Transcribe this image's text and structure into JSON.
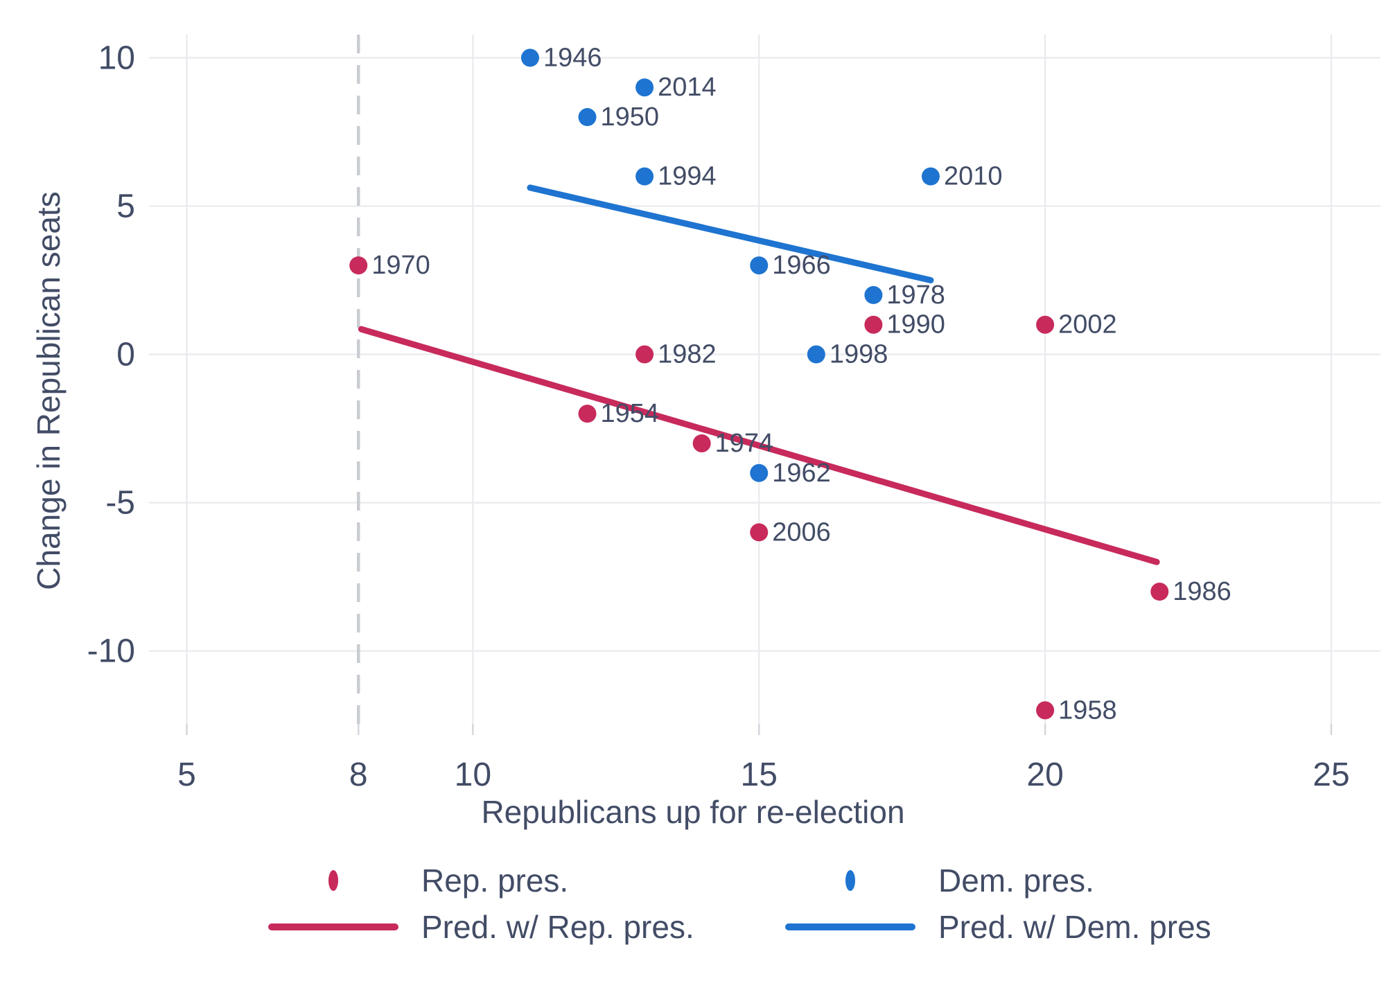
{
  "chart_data": {
    "type": "scatter",
    "title": "",
    "xlabel": "Republicans up for re-election",
    "ylabel": "Change in Republican seats",
    "x_ticks": [
      5,
      8,
      10,
      15,
      20,
      25
    ],
    "y_ticks": [
      10,
      5,
      0,
      -5,
      -10
    ],
    "x_range": [
      4.34,
      25.86
    ],
    "y_range": [
      -12.46,
      10.78
    ],
    "grid": true,
    "reference_line_x": 8,
    "series": [
      {
        "name": "Rep. pres.",
        "color": "#c72a5b",
        "points": [
          {
            "label": "1970",
            "x": 8,
            "y": 3
          },
          {
            "label": "1990",
            "x": 17,
            "y": 1
          },
          {
            "label": "2002",
            "x": 20,
            "y": 1
          },
          {
            "label": "1982",
            "x": 13,
            "y": 0
          },
          {
            "label": "1954",
            "x": 12,
            "y": -2
          },
          {
            "label": "1974",
            "x": 14,
            "y": -3
          },
          {
            "label": "2006",
            "x": 15,
            "y": -6
          },
          {
            "label": "1986",
            "x": 22,
            "y": -8
          },
          {
            "label": "1958",
            "x": 20,
            "y": -12
          }
        ]
      },
      {
        "name": "Dem. pres.",
        "color": "#1e74d0",
        "points": [
          {
            "label": "1946",
            "x": 11,
            "y": 10
          },
          {
            "label": "2014",
            "x": 13,
            "y": 9
          },
          {
            "label": "1950",
            "x": 12,
            "y": 8
          },
          {
            "label": "1994",
            "x": 13,
            "y": 6
          },
          {
            "label": "2010",
            "x": 18,
            "y": 6
          },
          {
            "label": "1966",
            "x": 15,
            "y": 3
          },
          {
            "label": "1978",
            "x": 17,
            "y": 2
          },
          {
            "label": "1998",
            "x": 16,
            "y": 0
          },
          {
            "label": "1962",
            "x": 15,
            "y": -4
          }
        ]
      }
    ],
    "trend_lines": [
      {
        "name": "Pred. w/ Rep. pres.",
        "color": "#c72a5b",
        "x1": 8.05,
        "y1": 0.85,
        "x2": 21.95,
        "y2": -7.0
      },
      {
        "name": "Pred. w/ Dem. pres",
        "color": "#1e74d0",
        "x1": 11.0,
        "y1": 5.62,
        "x2": 18.0,
        "y2": 2.5
      }
    ],
    "legend": [
      {
        "label": "Rep. pres.",
        "marker": "dot",
        "color": "#c72a5b"
      },
      {
        "label": "Dem. pres.",
        "marker": "dot",
        "color": "#1e74d0"
      },
      {
        "label": "Pred. w/ Rep. pres.",
        "marker": "line",
        "color": "#c72a5b"
      },
      {
        "label": "Pred. w/ Dem. pres",
        "marker": "line",
        "color": "#1e74d0"
      }
    ],
    "colors": {
      "text": "#424c66",
      "grid": "#e9eaee",
      "tick": "#d4d6da",
      "dashed_line": "#c9ccd1"
    }
  }
}
